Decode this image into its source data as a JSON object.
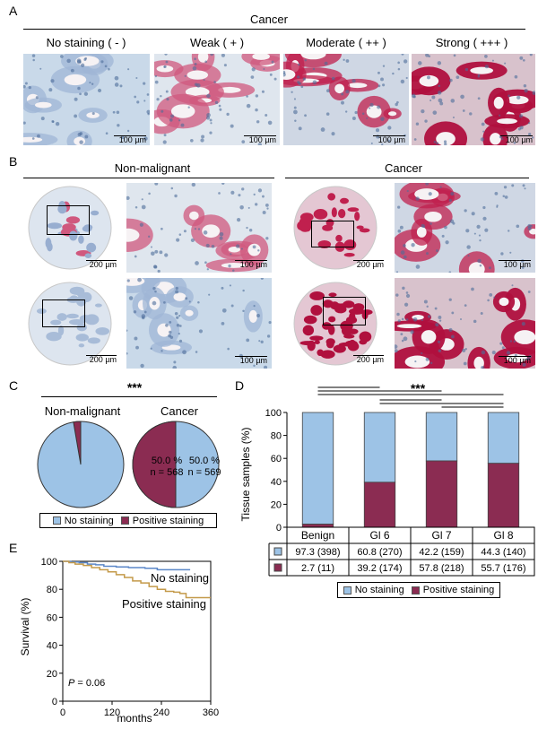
{
  "panel_a": {
    "label": "A",
    "header": "Cancer",
    "columns": [
      {
        "title": "No staining ( - )",
        "scale": "100 µm",
        "level": 0
      },
      {
        "title": "Weak ( + )",
        "scale": "100 µm",
        "level": 1
      },
      {
        "title": "Moderate ( ++ )",
        "scale": "100 µm",
        "level": 2
      },
      {
        "title": "Strong ( +++ )",
        "scale": "100 µm",
        "level": 3
      }
    ]
  },
  "panel_b": {
    "label": "B",
    "left_header": "Non-malignant",
    "right_header": "Cancer",
    "scales": {
      "core": "200 µm",
      "zoom": "100 µm"
    }
  },
  "panel_c": {
    "label": "C",
    "significance": "***",
    "pies": [
      {
        "title": "Non-malignant",
        "positive_fraction": 0.027
      },
      {
        "title": "Cancer",
        "positive_fraction": 0.5,
        "left_text": [
          "50.0 %",
          "n = 568"
        ],
        "right_text": [
          "50.0 %",
          "n = 569"
        ]
      }
    ],
    "legend": [
      "No staining",
      "Positive staining"
    ]
  },
  "panel_d": {
    "label": "D",
    "significance": "***",
    "ylabel": "Tissue samples (%)",
    "yticks": [
      "0",
      "20",
      "40",
      "60",
      "80",
      "100"
    ],
    "legend": [
      "No staining",
      "Positive staining"
    ]
  },
  "panel_e": {
    "label": "E",
    "ylabel": "Survival (%)",
    "xlabel": "months",
    "xticks": [
      "0",
      "120",
      "240",
      "360"
    ],
    "yticks": [
      "100",
      "80",
      "60",
      "40",
      "20",
      "0"
    ],
    "curve_labels": [
      "No staining",
      "Positive staining"
    ],
    "pvalue_italic": "P",
    "pvalue_rest": " = 0.06"
  },
  "colors": {
    "no_staining": "#9dc3e6",
    "positive": "#8b2c52",
    "km_no": "#5b87c8",
    "km_pos": "#c49a4a"
  },
  "chart_data": {
    "type": "bar",
    "categories": [
      "Benign",
      "Gl 6",
      "Gl 7",
      "Gl 8"
    ],
    "series": [
      {
        "name": "No staining",
        "values": [
          97.3,
          60.8,
          42.2,
          44.3
        ]
      },
      {
        "name": "Positive staining",
        "values": [
          2.7,
          39.2,
          57.8,
          55.7
        ]
      }
    ],
    "table_rows": [
      [
        "97.3 (398)",
        "60.8 (270)",
        "42.2 (159)",
        "44.3 (140)"
      ],
      [
        "2.7 (11)",
        "39.2 (174)",
        "57.8 (218)",
        "55.7 (176)"
      ]
    ],
    "ylabel": "Tissue samples (%)",
    "ylim": [
      0,
      100
    ],
    "stacked": true
  }
}
